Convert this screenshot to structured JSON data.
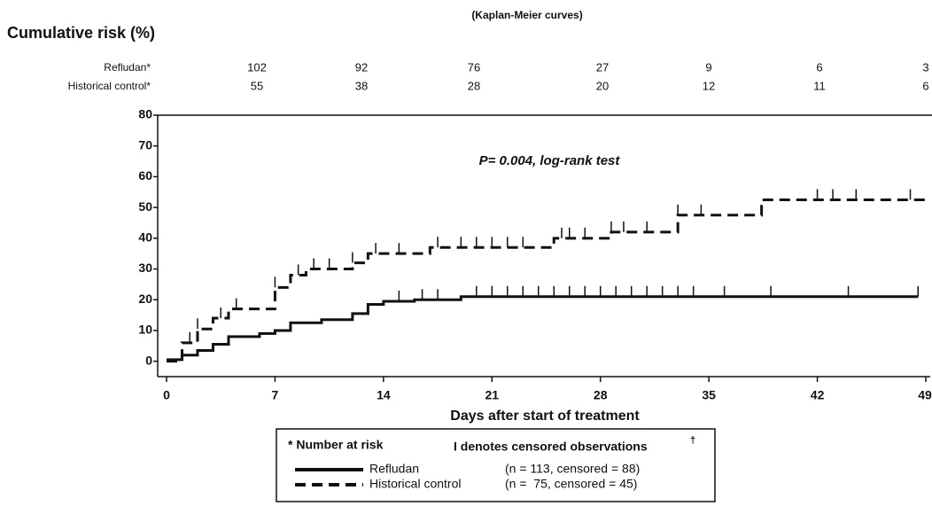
{
  "chart_data": {
    "type": "step",
    "title": "(Kaplan-Meier curves)",
    "ylabel": "Cumulative risk (%)",
    "xlabel": "Days after start of treatment",
    "annotation": "P= 0.004, log-rank test",
    "xlim": [
      0,
      49
    ],
    "xticks": [
      0,
      7,
      14,
      21,
      28,
      35,
      42,
      49
    ],
    "ylim": [
      -5,
      80
    ],
    "yticks": [
      0,
      10,
      20,
      30,
      40,
      50,
      60,
      70,
      80
    ],
    "series": [
      {
        "name": "Refludan",
        "color": "#111111",
        "dash": false,
        "legend_detail": "(n = 113, censored = 88)",
        "x": [
          0,
          1,
          2,
          3,
          4,
          6,
          7,
          8,
          10,
          12,
          13,
          14,
          16,
          19,
          48.5
        ],
        "values": [
          0.5,
          2,
          3.5,
          5.5,
          8,
          9,
          10,
          12.5,
          13.5,
          15.5,
          18.5,
          19.5,
          20,
          21,
          21
        ],
        "censored": [
          [
            15,
            19.5
          ],
          [
            16.5,
            20
          ],
          [
            17.5,
            20
          ],
          [
            20,
            21
          ],
          [
            21,
            21
          ],
          [
            22,
            21
          ],
          [
            23,
            21
          ],
          [
            24,
            21
          ],
          [
            25,
            21
          ],
          [
            26,
            21
          ],
          [
            27,
            21
          ],
          [
            28,
            21
          ],
          [
            29,
            21
          ],
          [
            30,
            21
          ],
          [
            31,
            21
          ],
          [
            32,
            21
          ],
          [
            33,
            21
          ],
          [
            34,
            21
          ],
          [
            36,
            21
          ],
          [
            39,
            21
          ],
          [
            44,
            21
          ],
          [
            48.5,
            21
          ]
        ]
      },
      {
        "name": "Historical control",
        "color": "#111111",
        "dash": true,
        "legend_detail": "(n =  75, censored = 45)",
        "x": [
          0,
          1,
          2,
          3,
          4,
          7,
          8,
          9,
          12,
          13,
          17,
          25,
          28.7,
          33,
          38.4,
          49
        ],
        "values": [
          0,
          6,
          10.5,
          14,
          17,
          24,
          28,
          30,
          32,
          35,
          37,
          40,
          42,
          47.5,
          52.5,
          52.5
        ],
        "censored": [
          [
            1.5,
            6
          ],
          [
            2,
            10.5
          ],
          [
            3.5,
            14
          ],
          [
            4.5,
            17
          ],
          [
            7,
            24
          ],
          [
            8.5,
            28
          ],
          [
            9.5,
            30
          ],
          [
            10.5,
            30
          ],
          [
            12,
            32
          ],
          [
            13.5,
            35
          ],
          [
            15,
            35
          ],
          [
            17.5,
            37
          ],
          [
            19,
            37
          ],
          [
            20,
            37
          ],
          [
            21,
            37
          ],
          [
            22,
            37
          ],
          [
            23,
            37
          ],
          [
            25.5,
            40
          ],
          [
            26,
            40
          ],
          [
            27,
            40
          ],
          [
            28.7,
            42
          ],
          [
            29.5,
            42
          ],
          [
            31,
            42
          ],
          [
            33,
            47.5
          ],
          [
            34.5,
            47.5
          ],
          [
            42,
            52.5
          ],
          [
            43,
            52.5
          ],
          [
            44.5,
            52.5
          ],
          [
            48,
            52.5
          ]
        ]
      }
    ],
    "number_at_risk": [
      {
        "label": "Refludan*",
        "values": [
          102,
          92,
          76,
          27,
          9,
          6,
          3
        ]
      },
      {
        "label": "Historical control*",
        "values": [
          55,
          38,
          28,
          20,
          12,
          11,
          6
        ]
      }
    ],
    "legend_notes": [
      "* Number at risk",
      "I denotes censored observations",
      "†"
    ]
  }
}
